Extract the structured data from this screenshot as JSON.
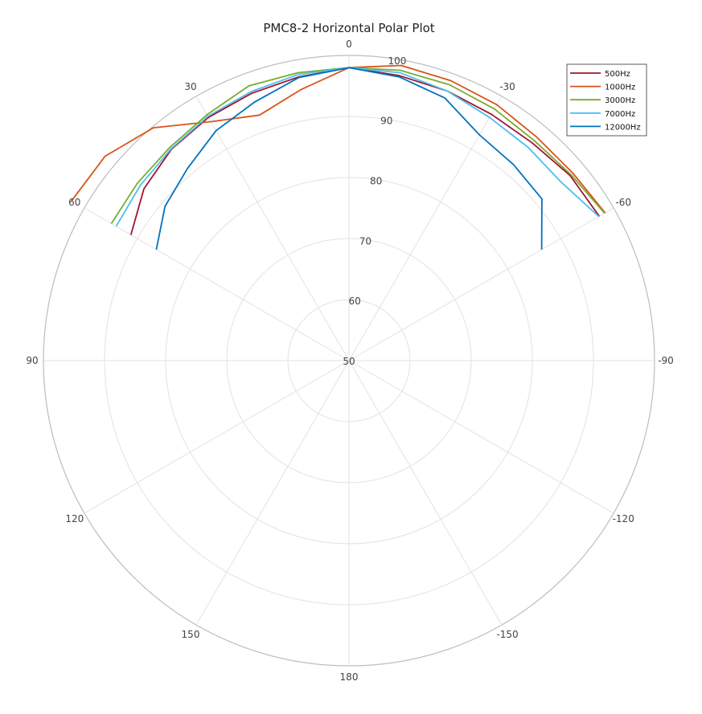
{
  "chart_data": {
    "type": "polar-line",
    "title": "PMC8-2 Horizontal Polar Plot",
    "theta_ticks": [
      0,
      -30,
      -60,
      -90,
      -120,
      -150,
      180,
      150,
      120,
      90,
      60,
      30
    ],
    "theta_tick_labels": [
      "0",
      "-30",
      "-60",
      "-90",
      "-120",
      "-150",
      "180",
      "150",
      "120",
      "90",
      "60",
      "30"
    ],
    "r_ticks": [
      50,
      60,
      70,
      80,
      90,
      100
    ],
    "r_tick_labels": [
      "50",
      "60",
      "70",
      "80",
      "90",
      "100"
    ],
    "rlim": [
      50,
      100
    ],
    "grid": true,
    "legend_position": "top-right",
    "series": [
      {
        "name": "500Hz",
        "color": "#a2142f",
        "theta": [
          60,
          50,
          40,
          30,
          20,
          10,
          0,
          -10,
          -20,
          -30,
          -40,
          -50,
          -60
        ],
        "r": [
          91.2,
          93.8,
          95.2,
          96.0,
          96.6,
          97.2,
          98.0,
          97.4,
          97.0,
          96.6,
          96.6,
          97.2,
          97.3
        ]
      },
      {
        "name": "1000Hz",
        "color": "#d95319",
        "theta": [
          60,
          50,
          40,
          30,
          20,
          10,
          0,
          -10,
          -20,
          -30,
          -40,
          -50,
          -60
        ],
        "r": [
          102.4,
          102.1,
          99.8,
          95.2,
          92.8,
          95.1,
          98.0,
          99.1,
          98.8,
          98.4,
          97.8,
          97.8,
          98.4
        ]
      },
      {
        "name": "3000Hz",
        "color": "#77ac30",
        "theta": [
          60,
          50,
          40,
          30,
          20,
          10,
          0,
          -10,
          -20,
          -30,
          -40,
          -50,
          -60
        ],
        "r": [
          94.9,
          95.2,
          95.6,
          96.5,
          97.9,
          97.9,
          98.0,
          98.3,
          98.1,
          97.6,
          97.1,
          97.4,
          98.3
        ]
      },
      {
        "name": "7000Hz",
        "color": "#4dbeee",
        "theta": [
          60,
          50,
          40,
          30,
          20,
          10,
          0,
          -10,
          -20,
          -30,
          -40,
          -50,
          -60
        ],
        "r": [
          94.0,
          94.6,
          95.3,
          96.2,
          96.9,
          97.6,
          98.0,
          97.9,
          97.0,
          96.0,
          95.6,
          95.4,
          97.2
        ]
      },
      {
        "name": "12000Hz",
        "color": "#0072bd",
        "theta": [
          60,
          50,
          40,
          30,
          20,
          10,
          0,
          -10,
          -20,
          -30,
          -40,
          -50,
          -60
        ],
        "r": [
          86.4,
          89.3,
          91.1,
          93.5,
          95.1,
          97.1,
          98.0,
          97.2,
          95.8,
          92.7,
          91.9,
          91.2,
          86.4
        ]
      }
    ]
  }
}
